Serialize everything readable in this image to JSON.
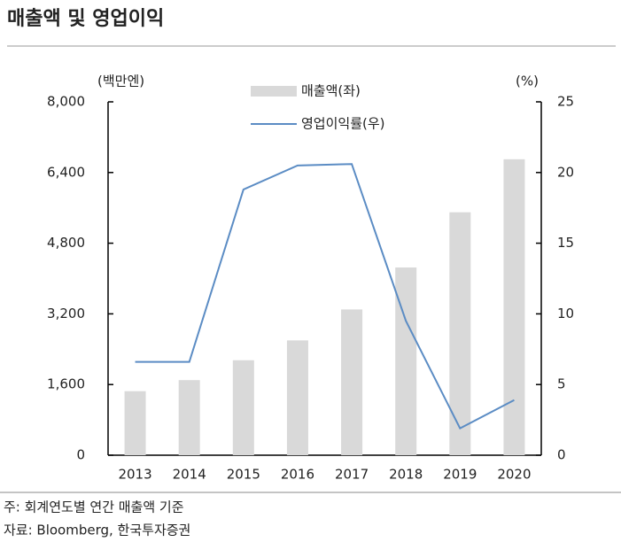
{
  "chart_data": {
    "type": "bar-line",
    "title": "매출액 및 영업이익",
    "y_unit_label": "(백만엔)",
    "y2_unit_label": "(%)",
    "categories": [
      "2013",
      "2014",
      "2015",
      "2016",
      "2017",
      "2018",
      "2019",
      "2020"
    ],
    "series": [
      {
        "name": "매출액(좌)",
        "type": "bar",
        "color": "#d9d9d9",
        "values": [
          1450,
          1700,
          2150,
          2600,
          3300,
          4250,
          5500,
          6700
        ]
      },
      {
        "name": "영업이익률(우)",
        "type": "line",
        "axis": "y2",
        "color": "#5b8cc4",
        "values": [
          6.6,
          6.6,
          18.8,
          20.5,
          20.6,
          9.5,
          1.9,
          3.9
        ]
      }
    ],
    "ylim": [
      0,
      8000
    ],
    "yticks": [
      0,
      {
        "value": 1600,
        "label": "1,600"
      },
      {
        "value": 3200,
        "label": "3,200"
      },
      {
        "value": 4800,
        "label": "4,800"
      },
      {
        "value": 6400,
        "label": "6,400"
      },
      {
        "value": 8000,
        "label": "8,000"
      }
    ],
    "y2lim": [
      0,
      25
    ],
    "y2ticks": [
      0,
      5,
      10,
      15,
      20,
      25
    ],
    "notes": [
      "주: 회계연도별 연간 매출액 기준",
      "자료: Bloomberg, 한국투자증권"
    ]
  }
}
